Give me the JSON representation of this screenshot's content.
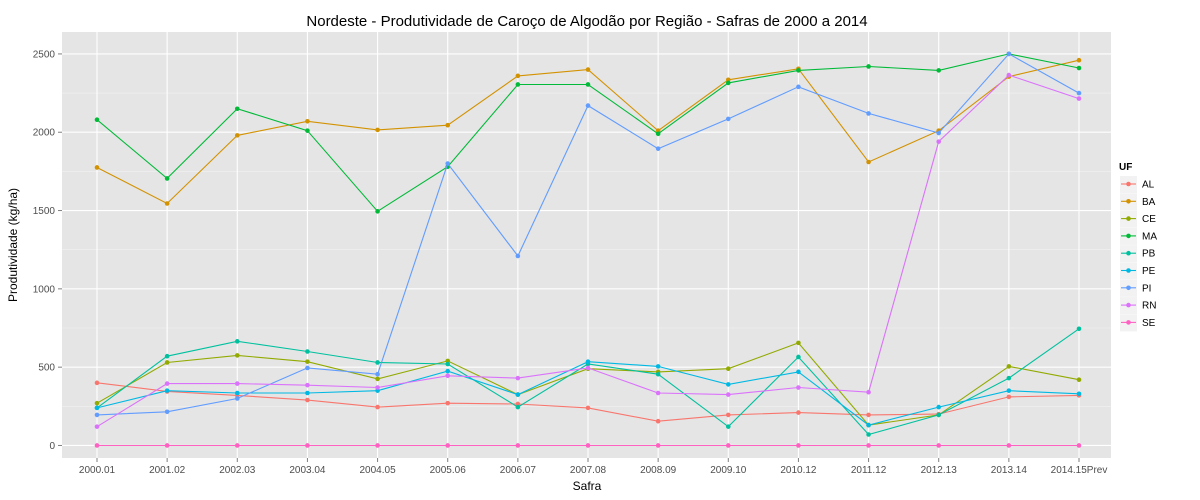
{
  "chart_data": {
    "type": "line",
    "title": "Nordeste  - Produtividade de Caroço de Algodão por Região - Safras de 2000 a 2014",
    "xlabel": "Safra",
    "ylabel": "Produtividade (kg/ha)",
    "categories": [
      "2000.01",
      "2001.02",
      "2002.03",
      "2003.04",
      "2004.05",
      "2005.06",
      "2006.07",
      "2007.08",
      "2008.09",
      "2009.10",
      "2010.12",
      "2011.12",
      "2012.13",
      "2013.14",
      "2014.15Prev"
    ],
    "ylim": [
      -80,
      2640
    ],
    "yticks": [
      0,
      500,
      1000,
      1500,
      2000,
      2500
    ],
    "grid": true,
    "legend_title": "UF",
    "legend_position": "right",
    "series": [
      {
        "name": "AL",
        "color": "#F8766D",
        "values": [
          400,
          345,
          320,
          290,
          245,
          270,
          265,
          240,
          155,
          195,
          210,
          195,
          200,
          310,
          320
        ]
      },
      {
        "name": "BA",
        "color": "#D39200",
        "values": [
          1775,
          1545,
          1980,
          2070,
          2015,
          2045,
          2360,
          2400,
          2010,
          2335,
          2405,
          1810,
          2010,
          2355,
          2460
        ]
      },
      {
        "name": "CE",
        "color": "#93AA00",
        "values": [
          270,
          530,
          575,
          535,
          425,
          540,
          325,
          490,
          470,
          490,
          655,
          130,
          195,
          505,
          420
        ]
      },
      {
        "name": "MA",
        "color": "#00BA38",
        "values": [
          2080,
          1705,
          2150,
          2010,
          1495,
          1780,
          2305,
          2305,
          1990,
          2315,
          2395,
          2420,
          2395,
          2500,
          2410
        ]
      },
      {
        "name": "PB",
        "color": "#00C19F",
        "values": [
          240,
          570,
          665,
          600,
          530,
          520,
          245,
          520,
          455,
          120,
          565,
          70,
          195,
          430,
          745
        ]
      },
      {
        "name": "PE",
        "color": "#00B9E3",
        "values": [
          240,
          350,
          335,
          335,
          350,
          475,
          325,
          535,
          505,
          390,
          470,
          130,
          245,
          350,
          330
        ]
      },
      {
        "name": "PI",
        "color": "#619CFF",
        "values": [
          195,
          215,
          300,
          495,
          455,
          1800,
          1210,
          2170,
          1895,
          2085,
          2290,
          2120,
          1995,
          2500,
          2250
        ]
      },
      {
        "name": "RN",
        "color": "#DB72FB",
        "values": [
          120,
          395,
          395,
          385,
          370,
          445,
          430,
          495,
          335,
          325,
          370,
          340,
          1940,
          2365,
          2215
        ]
      },
      {
        "name": "SE",
        "color": "#FF61C3",
        "values": [
          0,
          0,
          0,
          0,
          0,
          0,
          0,
          0,
          0,
          0,
          0,
          0,
          0,
          0,
          0
        ]
      }
    ]
  }
}
